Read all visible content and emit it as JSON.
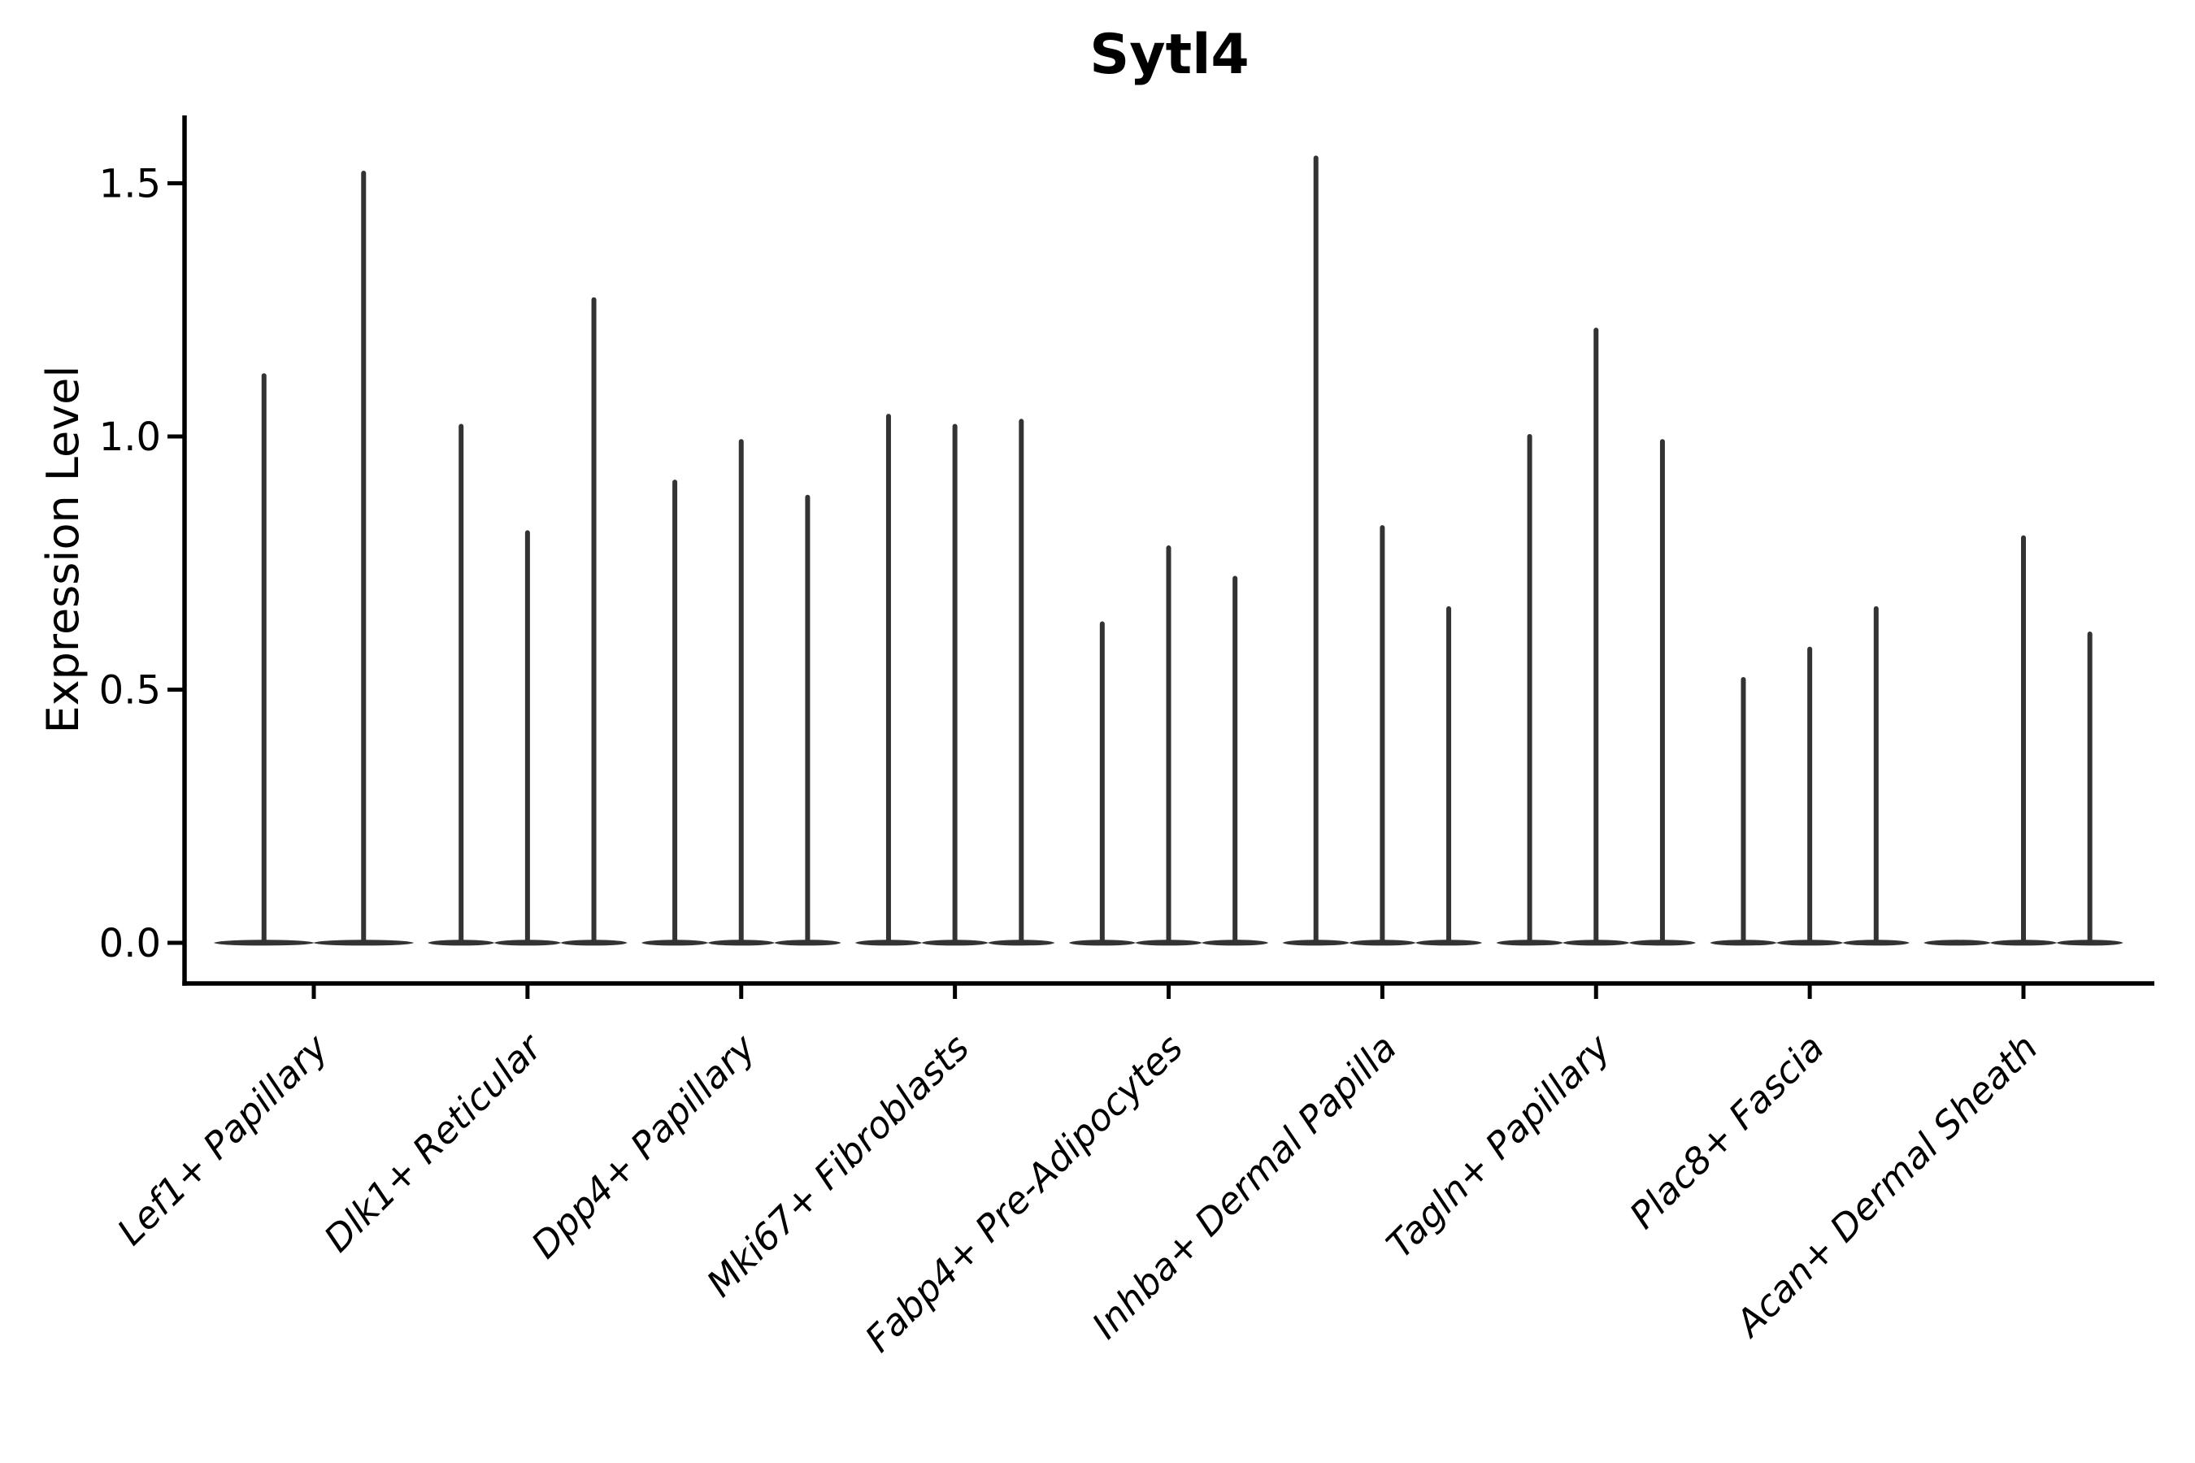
{
  "chart_data": {
    "type": "violin",
    "title": "Sytl4",
    "ylabel": "Expression Level",
    "xlabel": "",
    "y_axis": {
      "ticks": [
        0.0,
        0.5,
        1.0,
        1.5
      ],
      "tick_labels": [
        "0.0",
        "0.5",
        "1.0",
        "1.5"
      ],
      "range": [
        -0.08,
        1.63
      ],
      "grid": false
    },
    "legend_position": "none",
    "groups": [
      {
        "label": "Lef1+ Papillary",
        "violin_max_values": [
          1.12,
          1.52
        ]
      },
      {
        "label": "Dlk1+ Reticular",
        "violin_max_values": [
          1.02,
          0.81,
          1.27
        ]
      },
      {
        "label": "Dpp4+ Papillary",
        "violin_max_values": [
          0.91,
          0.99,
          0.88
        ]
      },
      {
        "label": "Mki67+ Fibroblasts",
        "violin_max_values": [
          1.04,
          1.02,
          1.03
        ]
      },
      {
        "label": "Fabp4+ Pre-Adipocytes",
        "violin_max_values": [
          0.63,
          0.78,
          0.72
        ]
      },
      {
        "label": "Inhba+ Dermal Papilla",
        "violin_max_values": [
          1.55,
          0.82,
          0.66
        ]
      },
      {
        "label": "Tagln+ Papillary",
        "violin_max_values": [
          1.0,
          1.21,
          0.99
        ]
      },
      {
        "label": "Plac8+ Fascia",
        "violin_max_values": [
          0.52,
          0.58,
          0.66
        ]
      },
      {
        "label": "Acan+ Dermal Sheath",
        "violin_max_values": [
          0.0,
          0.8,
          0.61
        ]
      }
    ],
    "violin_shape_note": "extremely thin spike violins with flat density bulge at expression 0",
    "colors": {
      "violin": "#333333",
      "axis": "#000000",
      "text": "#000000",
      "background": "#ffffff"
    }
  }
}
